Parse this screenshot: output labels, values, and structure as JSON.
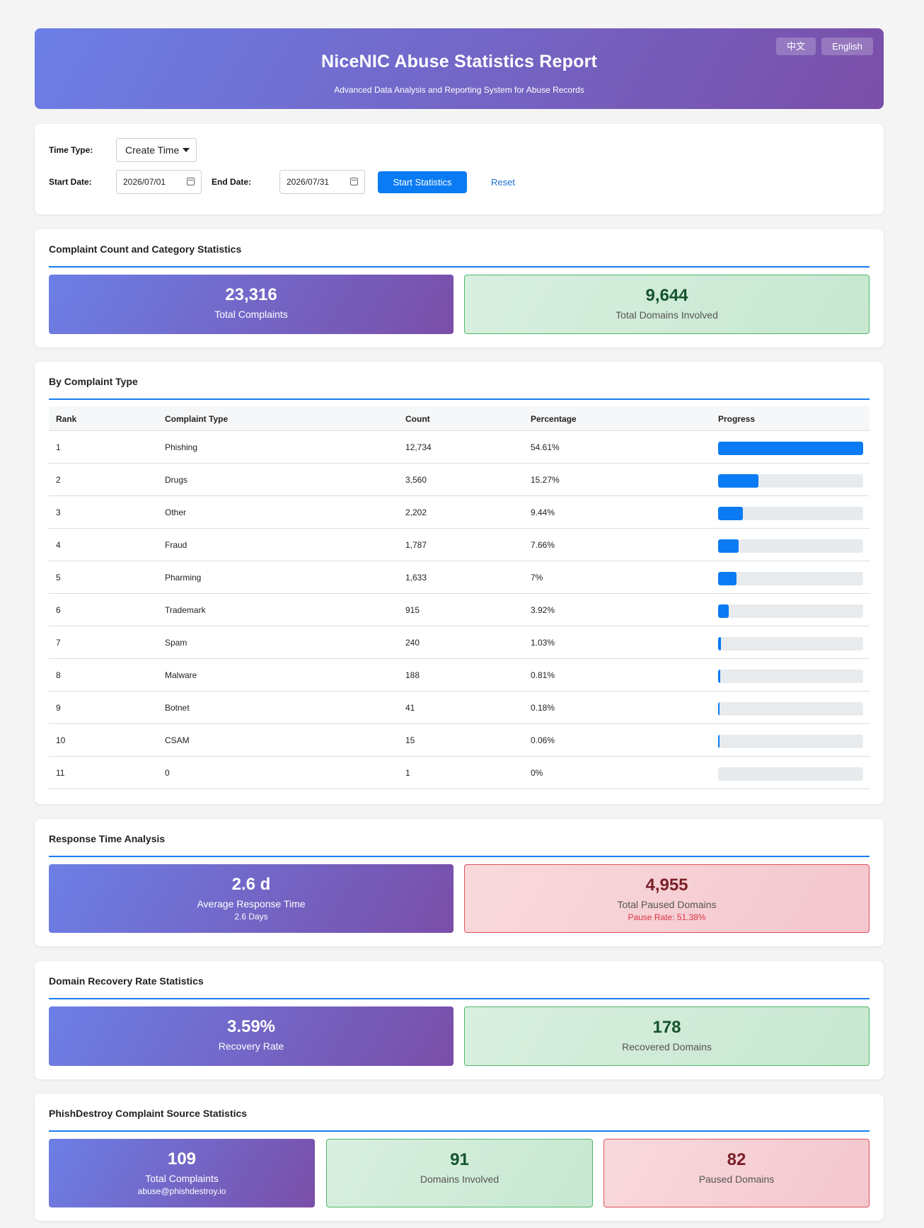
{
  "header": {
    "title": "NiceNIC Abuse Statistics Report",
    "subtitle": "Advanced Data Analysis and Reporting System for Abuse Records",
    "lang_zh": "中文",
    "lang_en": "English"
  },
  "filters": {
    "time_type_label": "Time Type:",
    "time_type_value": "Create Time",
    "start_date_label": "Start Date:",
    "start_date_value": "2026/07/01",
    "end_date_label": "End Date:",
    "end_date_value": "2026/07/31",
    "start_button": "Start Statistics",
    "reset_link": "Reset"
  },
  "complaint_stats": {
    "title": "Complaint Count and Category Statistics",
    "total_complaints": "23,316",
    "total_complaints_label": "Total Complaints",
    "total_domains": "9,644",
    "total_domains_label": "Total Domains Involved"
  },
  "by_type": {
    "title": "By Complaint Type",
    "headers": [
      "Rank",
      "Complaint Type",
      "Count",
      "Percentage",
      "Progress"
    ],
    "rows": [
      {
        "rank": "1",
        "type": "Phishing",
        "count": "12,734",
        "pct": "54.61%",
        "progress": 1.0
      },
      {
        "rank": "2",
        "type": "Drugs",
        "count": "3,560",
        "pct": "15.27%",
        "progress": 0.2796
      },
      {
        "rank": "3",
        "type": "Other",
        "count": "2,202",
        "pct": "9.44%",
        "progress": 0.1729
      },
      {
        "rank": "4",
        "type": "Fraud",
        "count": "1,787",
        "pct": "7.66%",
        "progress": 0.1403
      },
      {
        "rank": "5",
        "type": "Pharming",
        "count": "1,633",
        "pct": "7%",
        "progress": 0.1282
      },
      {
        "rank": "6",
        "type": "Trademark",
        "count": "915",
        "pct": "3.92%",
        "progress": 0.0718
      },
      {
        "rank": "7",
        "type": "Spam",
        "count": "240",
        "pct": "1.03%",
        "progress": 0.0189
      },
      {
        "rank": "8",
        "type": "Malware",
        "count": "188",
        "pct": "0.81%",
        "progress": 0.0148
      },
      {
        "rank": "9",
        "type": "Botnet",
        "count": "41",
        "pct": "0.18%",
        "progress": 0.0032
      },
      {
        "rank": "10",
        "type": "CSAM",
        "count": "15",
        "pct": "0.06%",
        "progress": 0.0012
      },
      {
        "rank": "11",
        "type": "0",
        "count": "1",
        "pct": "0%",
        "progress": 0
      }
    ]
  },
  "response_time": {
    "title": "Response Time Analysis",
    "avg_value": "2.6 d",
    "avg_label": "Average Response Time",
    "avg_sub": "2.6 Days",
    "paused_value": "4,955",
    "paused_label": "Total Paused Domains",
    "paused_sub": "Pause Rate: 51.38%"
  },
  "recovery": {
    "title": "Domain Recovery Rate Statistics",
    "rate_value": "3.59%",
    "rate_label": "Recovery Rate",
    "recovered_value": "178",
    "recovered_label": "Recovered Domains"
  },
  "phishdestroy": {
    "title": "PhishDestroy Complaint Source Statistics",
    "complaints_value": "109",
    "complaints_label": "Total Complaints",
    "complaints_sub": "abuse@phishdestroy.io",
    "domains_value": "91",
    "domains_label": "Domains Involved",
    "paused_value": "82",
    "paused_label": "Paused Domains"
  },
  "colors": {
    "accent": "#0a7bf2",
    "gradient_start": "#6c7fe6",
    "gradient_end": "#7a4ea8",
    "green_border": "#4db868",
    "red_border": "#e0505e"
  }
}
